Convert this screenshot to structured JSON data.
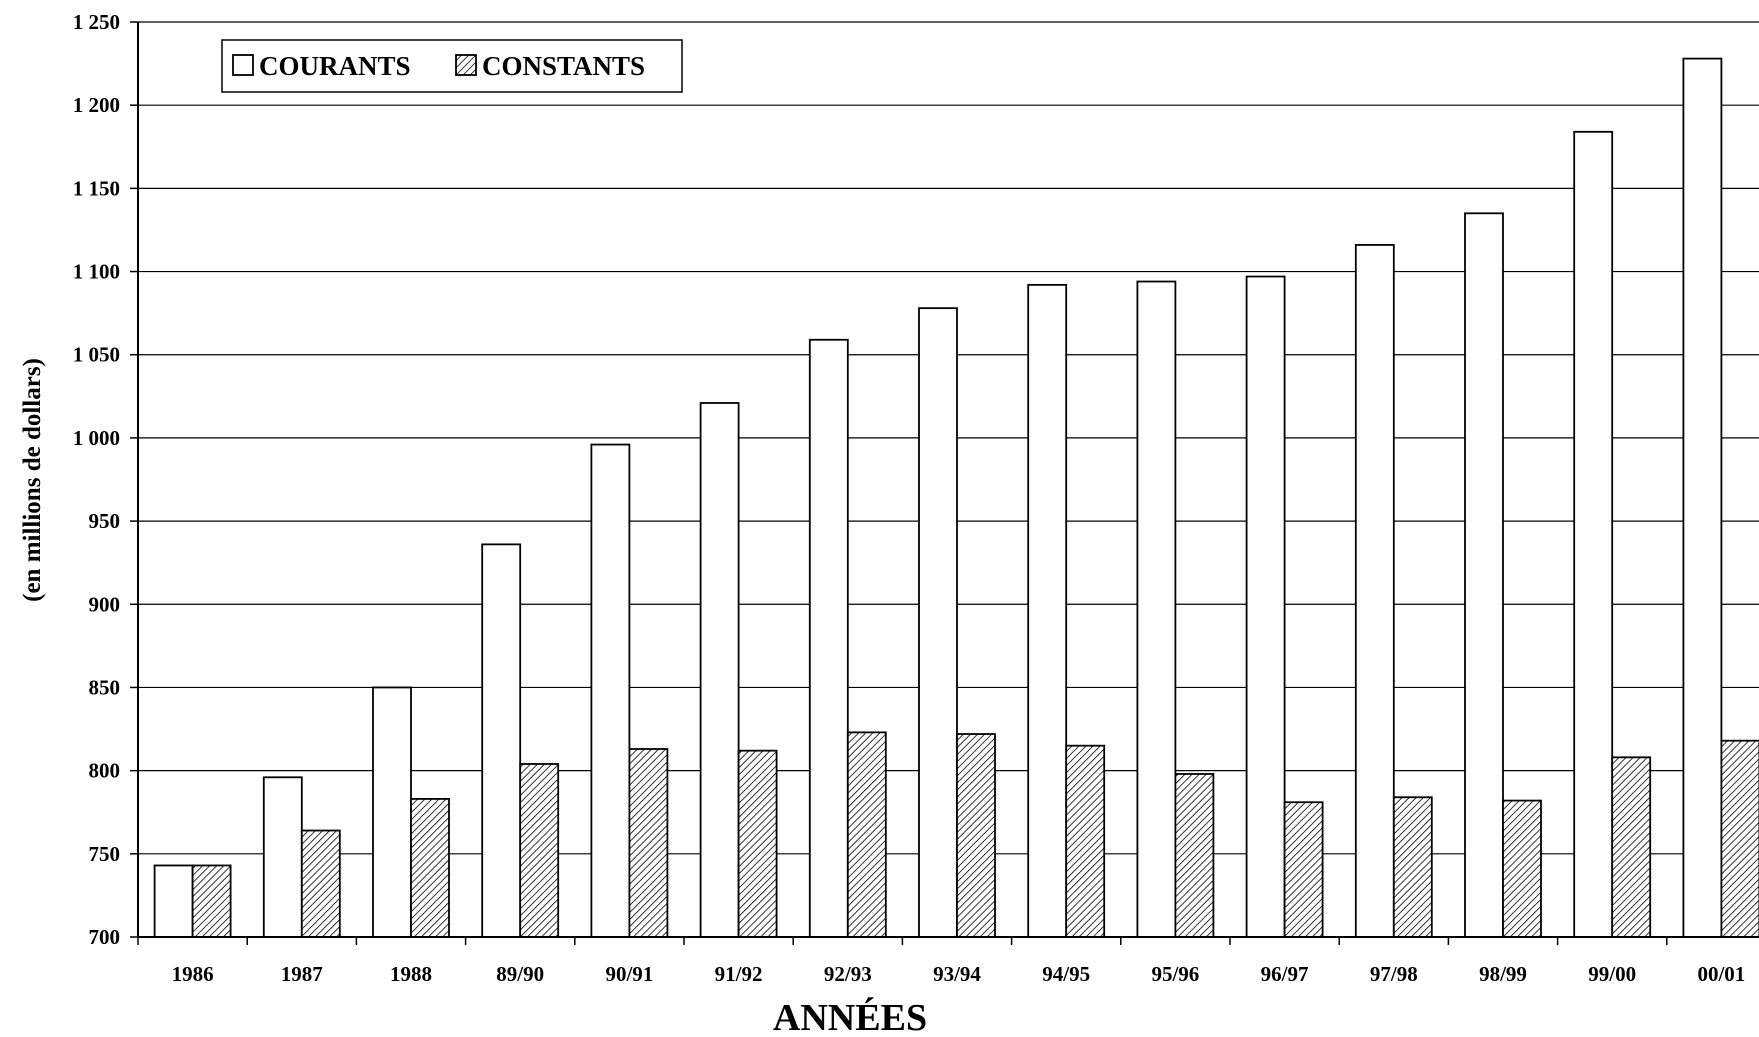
{
  "chart_data": {
    "type": "bar",
    "categories": [
      "1986",
      "1987",
      "1988",
      "89/90",
      "90/91",
      "91/92",
      "92/93",
      "93/94",
      "94/95",
      "95/96",
      "96/97",
      "97/98",
      "98/99",
      "99/00",
      "00/01"
    ],
    "series": [
      {
        "name": "COURANTS",
        "pattern": "none",
        "values": [
          743,
          796,
          850,
          936,
          996,
          1021,
          1059,
          1078,
          1092,
          1094,
          1097,
          1116,
          1135,
          1184,
          1228
        ]
      },
      {
        "name": "CONSTANTS",
        "pattern": "hatch",
        "values": [
          743,
          764,
          783,
          804,
          813,
          812,
          823,
          822,
          815,
          798,
          781,
          784,
          782,
          808,
          818
        ]
      }
    ],
    "ylim": [
      700,
      1250
    ],
    "yticks": [
      700,
      750,
      800,
      850,
      900,
      950,
      1000,
      1050,
      1100,
      1150,
      1200,
      1250
    ],
    "ytick_labels": [
      "700",
      "750",
      "800",
      "850",
      "900",
      "950",
      "1 000",
      "1 050",
      "1 100",
      "1 150",
      "1 200",
      "1 250"
    ],
    "ylabel": "(en millions de dollars)",
    "xlabel": "ANNÉES",
    "title": "",
    "grid": "horizontal",
    "legend_position": "top-left",
    "colors": {
      "bar_stroke": "#000000",
      "bar_fill": "#ffffff",
      "hatch": "#000000",
      "grid": "#000000"
    }
  }
}
